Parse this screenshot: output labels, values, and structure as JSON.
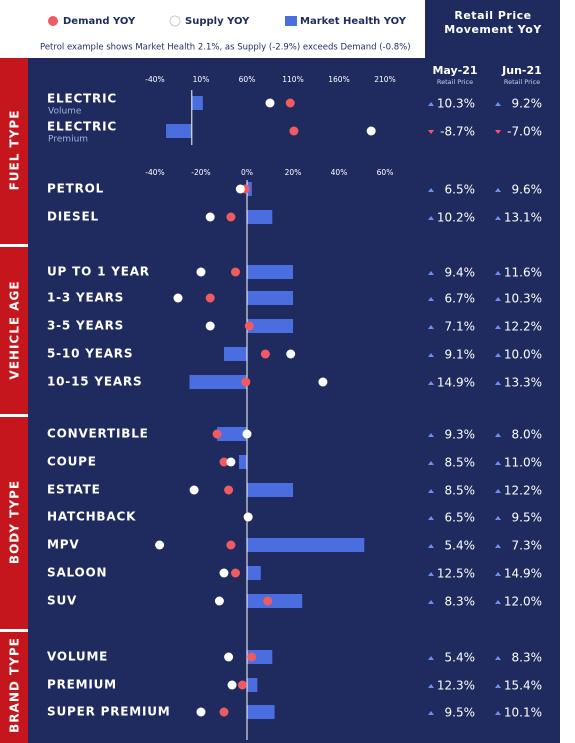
{
  "chart_data": [
    {
      "type": "dotbar",
      "categories": [
        "ELECTRIC",
        "ELECTRIC"
      ],
      "category_sublabels": [
        "Volume",
        "Premium"
      ],
      "xlim": [
        -40,
        210
      ],
      "xticks": [
        {
          "value": -40,
          "label": "-40%"
        },
        {
          "value": 10,
          "label": "10%"
        },
        {
          "value": 60,
          "label": "60%"
        },
        {
          "value": 110,
          "label": "110%"
        },
        {
          "value": 160,
          "label": "160%"
        },
        {
          "value": 210,
          "label": "210%"
        }
      ],
      "series": [
        {
          "mark": "dot",
          "color": "#ef5b60",
          "values": [
            107,
            111
          ]
        },
        {
          "mark": "dot",
          "color": "#ffffff",
          "values": [
            85,
            195
          ]
        },
        {
          "mark": "bar",
          "color": "#4a6ee0",
          "values": [
            12,
            -28
          ]
        }
      ]
    },
    {
      "type": "dotbar",
      "subtitle": "Petrol example shows Market Health 2.1%, as Supply (-2.9%) exceeds Demand (-0.8%)",
      "sections": [
        "FUEL TYPE",
        "VEHICLE AGE",
        "BODY TYPE",
        "BRAND TYPE"
      ],
      "categories": [
        "PETROL",
        "DIESEL",
        "UP TO 1 YEAR",
        "1-3 YEARS",
        "3-5 YEARS",
        "5-10 YEARS",
        "10-15 YEARS",
        "CONVERTIBLE",
        "COUPE",
        "ESTATE",
        "HATCHBACK",
        "MPV",
        "SALOON",
        "SUV",
        "VOLUME",
        "PREMIUM",
        "SUPER PREMIUM"
      ],
      "xlim": [
        -40,
        60
      ],
      "xticks": [
        {
          "value": -40,
          "label": "-40%"
        },
        {
          "value": -20,
          "label": "-20%"
        },
        {
          "value": 0,
          "label": "0%"
        },
        {
          "value": 20,
          "label": "20%"
        },
        {
          "value": 40,
          "label": "40%"
        },
        {
          "value": 60,
          "label": "60%"
        }
      ],
      "series": [
        {
          "name": "Demand YOY",
          "mark": "dot",
          "color": "#ef5b60",
          "values": [
            -0.8,
            -7,
            -5,
            -16,
            1,
            8,
            -0.5,
            -13,
            -10,
            -8,
            0.5,
            -7,
            -5,
            9,
            2,
            -2,
            -10
          ]
        },
        {
          "name": "Supply YOY",
          "mark": "dot",
          "color": "#ffffff",
          "values": [
            -2.9,
            -16,
            -20,
            -30,
            -16,
            19,
            33,
            0,
            -7,
            -23,
            0.5,
            -38,
            -10,
            -12,
            -8,
            -6.5,
            -20
          ]
        },
        {
          "name": "Market Health YOY",
          "mark": "bar",
          "color": "#4a6ee0",
          "values": [
            2.1,
            11,
            20,
            20,
            20,
            -10,
            -25,
            -13,
            -3.5,
            20,
            0,
            51,
            6,
            24,
            11,
            4.5,
            12
          ]
        }
      ]
    }
  ],
  "retail_price": {
    "title": "Retail Price Movement YoY",
    "columns": [
      {
        "label": "May-21",
        "sub": "Retail Price"
      },
      {
        "label": "Jun-21",
        "sub": "Retail Price"
      }
    ],
    "rows": [
      [
        "10.3%",
        "9.2%"
      ],
      [
        "-8.7%",
        "-7.0%"
      ],
      [
        "6.5%",
        "9.6%"
      ],
      [
        "10.2%",
        "13.1%"
      ],
      [
        "9.4%",
        "11.6%"
      ],
      [
        "6.7%",
        "10.3%"
      ],
      [
        "7.1%",
        "12.2%"
      ],
      [
        "9.1%",
        "10.0%"
      ],
      [
        "14.9%",
        "13.3%"
      ],
      [
        "9.3%",
        "8.0%"
      ],
      [
        "8.5%",
        "11.0%"
      ],
      [
        "8.5%",
        "12.2%"
      ],
      [
        "6.5%",
        "9.5%"
      ],
      [
        "5.4%",
        "7.3%"
      ],
      [
        "12.5%",
        "14.9%"
      ],
      [
        "8.3%",
        "12.0%"
      ],
      [
        "5.4%",
        "8.3%"
      ],
      [
        "12.3%",
        "15.4%"
      ],
      [
        "9.5%",
        "10.1%"
      ]
    ]
  }
}
